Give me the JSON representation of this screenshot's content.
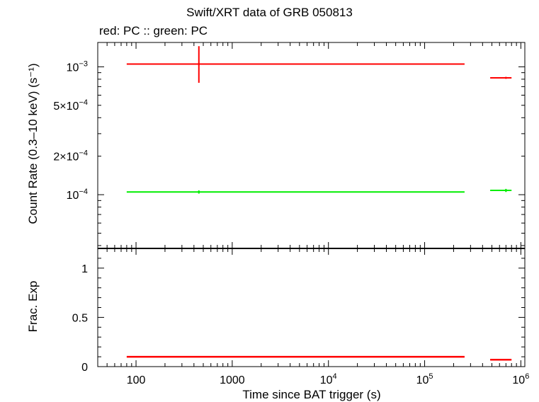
{
  "chart_title": "Swift/XRT data of GRB 050813",
  "subtitle": "red: PC  :: green: PC",
  "colors": {
    "red": "#ff0000",
    "green": "#00ee00",
    "axis": "#000000"
  },
  "chart_data": [
    {
      "type": "scatter",
      "name": "count-rate-panel",
      "ylabel": "Count Rate (0.3–10 keV) (s⁻¹)",
      "xscale": "log",
      "yscale": "log",
      "xlim": [
        40,
        1100000
      ],
      "ylim": [
        3.8e-05,
        0.00155
      ],
      "yticks": [
        {
          "value": 0.001,
          "mantissa": "",
          "exp": "−3"
        },
        {
          "value": 0.0005,
          "mantissa": "5×",
          "exp": "−4"
        },
        {
          "value": 0.0002,
          "mantissa": "2×",
          "exp": "−4"
        },
        {
          "value": 0.0001,
          "mantissa": "",
          "exp": "−4"
        }
      ],
      "series": [
        {
          "color": "red",
          "points": [
            {
              "x": 450,
              "xlo": 80,
              "xhi": 260000,
              "y": 0.00105,
              "ylo": 0.00075,
              "yhi": 0.00145
            },
            {
              "x": 700000,
              "xlo": 480000,
              "xhi": 800000,
              "y": 0.00082,
              "ylo": 0.00082,
              "yhi": 0.00082
            }
          ]
        },
        {
          "color": "green",
          "points": [
            {
              "x": 450,
              "xlo": 80,
              "xhi": 260000,
              "y": 0.000105,
              "ylo": 0.000102,
              "yhi": 0.000108
            },
            {
              "x": 700000,
              "xlo": 480000,
              "xhi": 800000,
              "y": 0.000108,
              "ylo": 0.000105,
              "yhi": 0.000111
            }
          ]
        }
      ]
    },
    {
      "type": "line",
      "name": "exposure-panel",
      "ylabel": "Frac. Exp",
      "xlabel": "Time since BAT trigger (s)",
      "xscale": "log",
      "xlim": [
        40,
        1100000
      ],
      "ylim": [
        0,
        1.2
      ],
      "yticks": [
        {
          "value": 0,
          "label": "0"
        },
        {
          "value": 0.5,
          "label": "0.5"
        },
        {
          "value": 1,
          "label": "1"
        }
      ],
      "xticks": [
        {
          "value": 100,
          "mantissa": "100",
          "exp": ""
        },
        {
          "value": 1000,
          "mantissa": "1000",
          "exp": ""
        },
        {
          "value": 10000,
          "mantissa": "10",
          "exp": "4"
        },
        {
          "value": 100000,
          "mantissa": "10",
          "exp": "5"
        },
        {
          "value": 1000000,
          "mantissa": "10",
          "exp": "6"
        }
      ],
      "series": [
        {
          "color": "red",
          "segments": [
            {
              "xlo": 80,
              "xhi": 260000,
              "y": 0.1
            },
            {
              "xlo": 480000,
              "xhi": 800000,
              "y": 0.07
            }
          ]
        }
      ]
    }
  ]
}
